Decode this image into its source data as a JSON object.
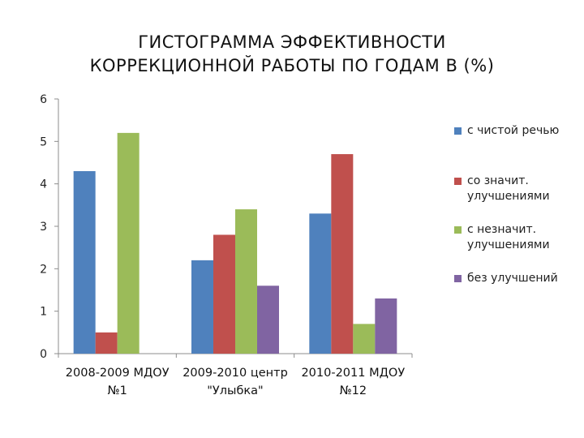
{
  "chart_data": {
    "type": "bar",
    "title_lines": [
      "ГИСТОГРАММА ЭФФЕКТИВНОСТИ",
      "КОРРЕКЦИОННОЙ РАБОТЫ ПО ГОДАМ В (%)"
    ],
    "categories": [
      [
        "2008-2009 МДОУ",
        "№1"
      ],
      [
        "2009-2010 центр",
        "\"Улыбка\""
      ],
      [
        "2010-2011 МДОУ",
        "№12"
      ]
    ],
    "series": [
      {
        "name": "с чистой речью",
        "values": [
          4.3,
          2.2,
          3.3
        ],
        "color": "#4f81bd"
      },
      {
        "name": "со значит. улучшениями",
        "values": [
          0.5,
          2.8,
          4.7
        ],
        "color": "#c0504d"
      },
      {
        "name": "с незначит. улучшениями",
        "values": [
          5.2,
          3.4,
          0.7
        ],
        "color": "#9bbb59"
      },
      {
        "name": "без улучшений",
        "values": [
          null,
          1.6,
          1.3
        ],
        "color": "#8064a2"
      }
    ],
    "ylim": [
      0,
      6
    ],
    "yticks": [
      "0",
      "1",
      "2",
      "3",
      "4",
      "5",
      "6"
    ],
    "grid": false,
    "legend_position": "right"
  }
}
